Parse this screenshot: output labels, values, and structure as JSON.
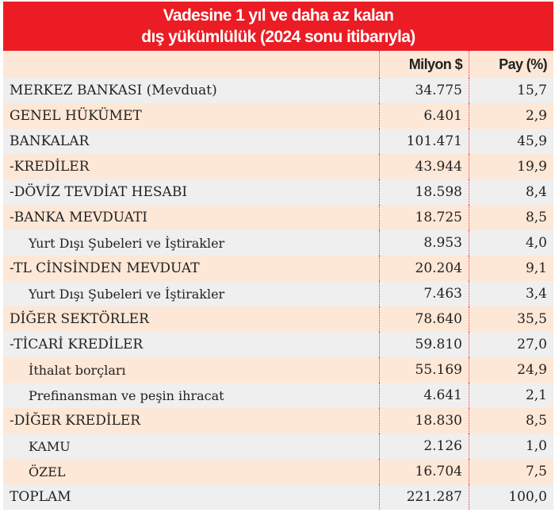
{
  "title": {
    "line1": "Vadesine 1 yıl ve daha az kalan",
    "line2": "dış yükümlülük (2024 sonu itibarıyla)"
  },
  "columns": [
    "",
    "Milyon $",
    "Pay (%)"
  ],
  "rows": [
    {
      "label": "MERKEZ BANKASI (Mevduat)",
      "value": "34.775",
      "share": "15,7",
      "indent": false
    },
    {
      "label": "GENEL HÜKÜMET",
      "value": "6.401",
      "share": "2,9",
      "indent": false
    },
    {
      "label": "BANKALAR",
      "value": "101.471",
      "share": "45,9",
      "indent": false
    },
    {
      "label": "-KREDİLER",
      "value": "43.944",
      "share": "19,9",
      "indent": false
    },
    {
      "label": "-DÖVİZ TEVDİAT HESABI",
      "value": "18.598",
      "share": "8,4",
      "indent": false
    },
    {
      "label": "-BANKA MEVDUATI",
      "value": "18.725",
      "share": "8,5",
      "indent": false
    },
    {
      "label": "Yurt Dışı Şubeleri ve İştirakler",
      "value": "8.953",
      "share": "4,0",
      "indent": true
    },
    {
      "label": "-TL CİNSİNDEN MEVDUAT",
      "value": "20.204",
      "share": "9,1",
      "indent": false
    },
    {
      "label": "Yurt Dışı Şubeleri ve İştirakler",
      "value": "7.463",
      "share": "3,4",
      "indent": true
    },
    {
      "label": "DİĞER SEKTÖRLER",
      "value": "78.640",
      "share": "35,5",
      "indent": false
    },
    {
      "label": "-TİCARİ KREDİLER",
      "value": "59.810",
      "share": "27,0",
      "indent": false
    },
    {
      "label": "İthalat borçları",
      "value": "55.169",
      "share": "24,9",
      "indent": true
    },
    {
      "label": "Prefinansman ve peşin ihracat",
      "value": "4.641",
      "share": "2,1",
      "indent": true
    },
    {
      "label": "-DİĞER KREDİLER",
      "value": "18.830",
      "share": "8,5",
      "indent": false
    },
    {
      "label": "KAMU",
      "value": "2.126",
      "share": "1,0",
      "indent": true
    },
    {
      "label": "ÖZEL",
      "value": "16.704",
      "share": "7,5",
      "indent": true
    },
    {
      "label": "TOPLAM",
      "value": "221.287",
      "share": "100,0",
      "indent": false
    }
  ]
}
